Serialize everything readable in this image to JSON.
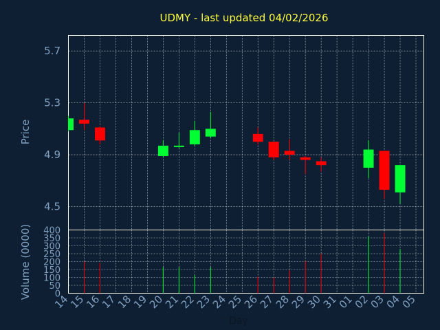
{
  "chart_data": {
    "type": "candlestick",
    "title": "UDMY - last updated 04/02/2026",
    "colors": {
      "background": "#0f1f33",
      "plot_border": "#ffffff",
      "grid": "#ffffff",
      "up": "#00ff33",
      "down": "#ff0000",
      "title": "#ffff3b",
      "axis_text": "#7fa0c0",
      "xlabel_text": "#0c1622"
    },
    "price_panel": {
      "ylabel": "Price",
      "ylim": [
        4.32,
        5.82
      ],
      "yticks": [
        4.5,
        4.9,
        5.3,
        5.7
      ],
      "grid": true
    },
    "volume_panel": {
      "ylabel": "Volume (0000)",
      "ylim": [
        0,
        400
      ],
      "yticks": [
        0,
        50,
        100,
        150,
        200,
        250,
        300,
        350,
        400
      ],
      "grid": true
    },
    "xlabel": "Day",
    "xticks": [
      "14",
      "15",
      "16",
      "17",
      "18",
      "19",
      "20",
      "21",
      "22",
      "23",
      "24",
      "25",
      "26",
      "27",
      "28",
      "29",
      "30",
      "31",
      "01",
      "02",
      "03",
      "04",
      "05"
    ],
    "candles": [
      {
        "day": "14",
        "open": 5.09,
        "close": 5.18,
        "high": 5.2,
        "low": 5.08,
        "volume": 0
      },
      {
        "day": "15",
        "open": 5.17,
        "close": 5.14,
        "high": 5.3,
        "low": 5.09,
        "volume": 200
      },
      {
        "day": "16",
        "open": 5.11,
        "close": 5.01,
        "high": 5.12,
        "low": 4.98,
        "volume": 190
      },
      {
        "day": "20",
        "open": 4.89,
        "close": 4.97,
        "high": 5.01,
        "low": 4.88,
        "volume": 165
      },
      {
        "day": "21",
        "open": 4.96,
        "close": 4.97,
        "high": 5.07,
        "low": 4.95,
        "volume": 165
      },
      {
        "day": "22",
        "open": 4.98,
        "close": 5.09,
        "high": 5.16,
        "low": 4.97,
        "volume": 115
      },
      {
        "day": "23",
        "open": 5.04,
        "close": 5.1,
        "high": 5.23,
        "low": 5.03,
        "volume": 165
      },
      {
        "day": "26",
        "open": 5.06,
        "close": 5.0,
        "high": 5.11,
        "low": 4.98,
        "volume": 105
      },
      {
        "day": "27",
        "open": 5.0,
        "close": 4.88,
        "high": 5.0,
        "low": 4.86,
        "volume": 100
      },
      {
        "day": "28",
        "open": 4.93,
        "close": 4.9,
        "high": 5.02,
        "low": 4.86,
        "volume": 145
      },
      {
        "day": "29",
        "open": 4.88,
        "close": 4.86,
        "high": 4.89,
        "low": 4.75,
        "volume": 205
      },
      {
        "day": "30",
        "open": 4.85,
        "close": 4.82,
        "high": 4.88,
        "low": 4.77,
        "volume": 250
      },
      {
        "day": "02",
        "open": 4.8,
        "close": 4.94,
        "high": 5.01,
        "low": 4.72,
        "volume": 360
      },
      {
        "day": "03",
        "open": 4.93,
        "close": 4.63,
        "high": 4.93,
        "low": 4.56,
        "volume": 380
      },
      {
        "day": "04",
        "open": 4.61,
        "close": 4.82,
        "high": 4.82,
        "low": 4.52,
        "volume": 280
      }
    ]
  }
}
